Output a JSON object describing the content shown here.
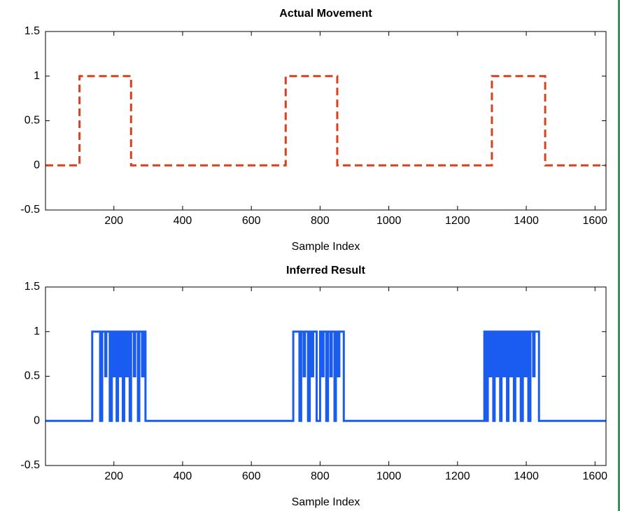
{
  "chart_data": [
    {
      "type": "line",
      "title": "Actual Movement",
      "xlabel": "Sample Index",
      "xlim": [
        1,
        1632
      ],
      "ylim": [
        -0.5,
        1.5
      ],
      "xticks": [
        200,
        400,
        600,
        800,
        1000,
        1200,
        1400,
        1600
      ],
      "yticks": [
        -0.5,
        0,
        0.5,
        1,
        1.5
      ],
      "series": [
        {
          "color": "#d8401f",
          "linestyle": "dashed",
          "x": [
            1,
            100,
            100,
            250,
            250,
            700,
            700,
            850,
            850,
            1300,
            1300,
            1455,
            1455,
            1632
          ],
          "values": [
            0,
            0,
            1,
            1,
            0,
            0,
            1,
            1,
            0,
            0,
            1,
            1,
            0,
            0
          ]
        }
      ]
    },
    {
      "type": "line",
      "title": "Inferred Result",
      "xlabel": "Sample Index",
      "xlim": [
        1,
        1632
      ],
      "ylim": [
        -0.5,
        1.5
      ],
      "xticks": [
        200,
        400,
        600,
        800,
        1000,
        1200,
        1400,
        1600
      ],
      "yticks": [
        -0.5,
        0,
        0.5,
        1,
        1.5
      ],
      "series": [
        {
          "color": "#1a5cf0",
          "linestyle": "solid",
          "x": [
            1,
            137,
            137,
            160,
            160,
            166,
            166,
            175,
            175,
            178,
            178,
            188,
            188,
            194,
            194,
            200,
            200,
            203,
            203,
            208,
            208,
            212,
            212,
            218,
            218,
            222,
            222,
            226,
            226,
            230,
            230,
            236,
            236,
            240,
            240,
            246,
            246,
            250,
            250,
            258,
            258,
            262,
            262,
            270,
            270,
            274,
            274,
            282,
            282,
            286,
            286,
            292,
            292,
            722,
            722,
            740,
            740,
            745,
            745,
            752,
            752,
            756,
            756,
            765,
            765,
            770,
            770,
            776,
            776,
            780,
            780,
            790,
            790,
            800,
            800,
            806,
            806,
            810,
            810,
            818,
            818,
            823,
            823,
            830,
            830,
            834,
            834,
            842,
            842,
            846,
            846,
            852,
            852,
            856,
            856,
            869,
            869,
            1278,
            1278,
            1284,
            1284,
            1288,
            1288,
            1294,
            1294,
            1298,
            1298,
            1304,
            1304,
            1308,
            1308,
            1314,
            1314,
            1318,
            1318,
            1324,
            1324,
            1328,
            1328,
            1334,
            1334,
            1338,
            1338,
            1344,
            1344,
            1348,
            1348,
            1354,
            1354,
            1358,
            1358,
            1364,
            1364,
            1368,
            1368,
            1374,
            1374,
            1378,
            1378,
            1384,
            1384,
            1390,
            1390,
            1396,
            1396,
            1400,
            1400,
            1406,
            1406,
            1412,
            1412,
            1420,
            1420,
            1424,
            1424,
            1437,
            1437,
            1632
          ],
          "values": [
            0,
            0,
            1,
            1,
            0,
            0,
            1,
            1,
            0.5,
            0.5,
            1,
            1,
            0,
            0,
            1,
            1,
            0.5,
            0.5,
            1,
            1,
            0,
            0,
            1,
            1,
            0.5,
            0.5,
            1,
            1,
            0,
            0,
            1,
            1,
            0.5,
            0.5,
            1,
            1,
            0,
            0,
            1,
            1,
            0.5,
            0.5,
            1,
            1,
            0,
            0,
            1,
            1,
            0.5,
            0.5,
            1,
            1,
            0,
            0,
            1,
            1,
            0,
            0,
            1,
            1,
            0.5,
            0.5,
            1,
            1,
            0,
            0,
            1,
            1,
            0.5,
            0.5,
            1,
            1,
            0,
            0,
            1,
            1,
            0.5,
            0.5,
            1,
            1,
            0,
            0,
            1,
            1,
            0.5,
            0.5,
            1,
            1,
            0,
            0,
            1,
            1,
            0.5,
            0.5,
            1,
            1,
            0,
            0,
            1,
            1,
            0,
            0,
            1,
            1,
            0.5,
            0.5,
            1,
            1,
            0,
            0,
            1,
            1,
            0.5,
            0.5,
            1,
            1,
            0,
            0,
            1,
            1,
            0.5,
            0.5,
            1,
            1,
            0,
            0,
            1,
            1,
            0.5,
            0.5,
            1,
            1,
            0,
            0,
            1,
            1,
            0.5,
            0.5,
            1,
            1,
            0,
            0,
            1,
            1,
            0.5,
            0.5,
            1,
            1,
            0,
            0,
            1,
            1,
            0.5,
            0.5,
            1,
            1,
            0,
            0
          ]
        }
      ]
    }
  ]
}
